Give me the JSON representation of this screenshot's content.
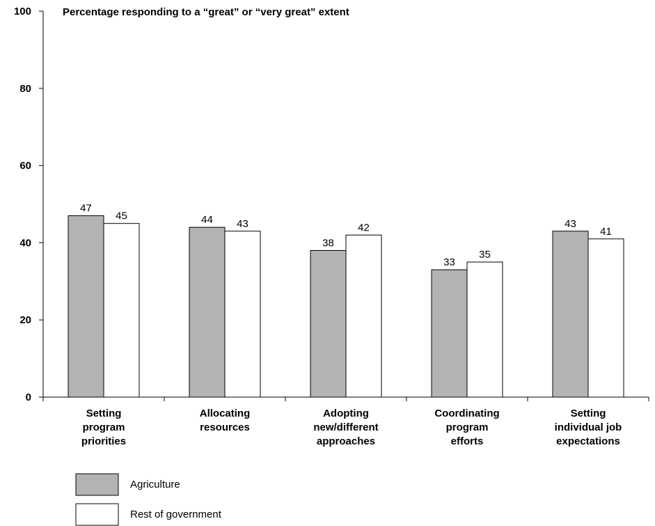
{
  "chart_data": {
    "type": "bar",
    "title": "Percentage responding to a “great” or “very great” extent",
    "categories": [
      [
        "Setting",
        "program",
        "priorities"
      ],
      [
        "Allocating",
        "resources"
      ],
      [
        "Adopting",
        "new/different",
        "approaches"
      ],
      [
        "Coordinating",
        "program",
        "efforts"
      ],
      [
        "Setting",
        "individual job",
        "expectations"
      ]
    ],
    "series": [
      {
        "name": "Agriculture",
        "color": "#b3b3b3",
        "values": [
          47,
          44,
          38,
          33,
          43
        ]
      },
      {
        "name": "Rest of government",
        "color": "#ffffff",
        "values": [
          45,
          43,
          42,
          35,
          41
        ]
      }
    ],
    "ylim": [
      0,
      100
    ],
    "yticks": [
      0,
      20,
      40,
      60,
      80,
      100
    ],
    "grid": false,
    "legend_position": "bottom-left"
  }
}
